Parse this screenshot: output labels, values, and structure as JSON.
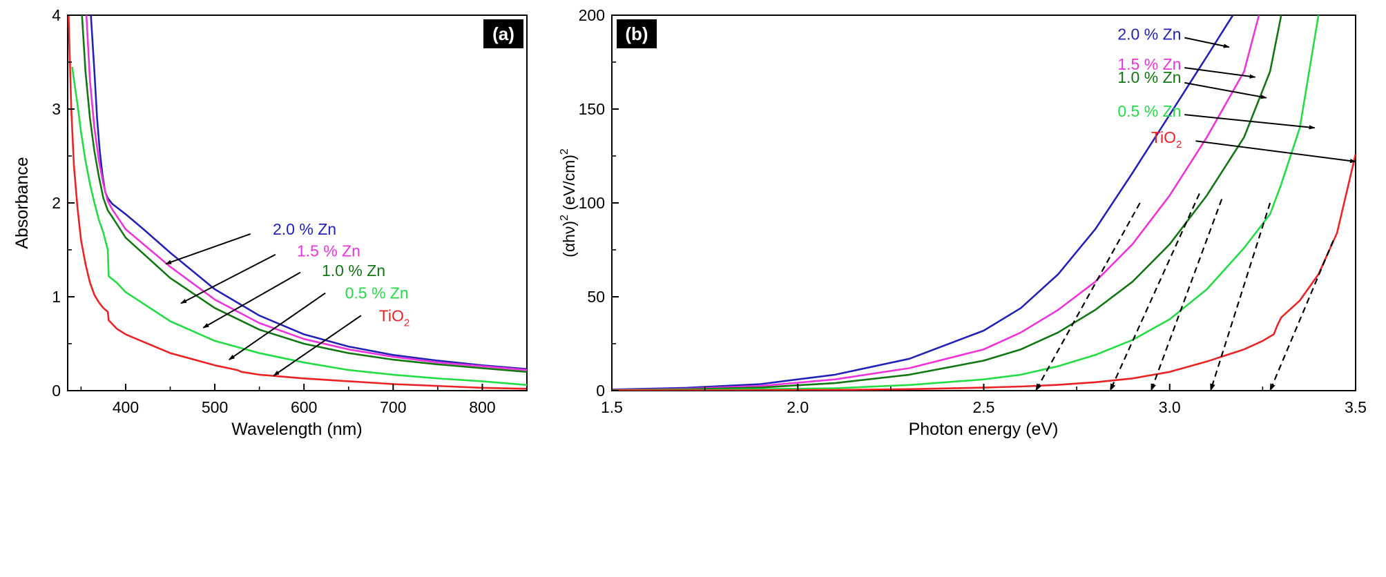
{
  "chart_data": [
    {
      "type": "line",
      "panel_label": "(a)",
      "xlabel": "Wavelength (nm)",
      "ylabel": "Absorbance",
      "xlim": [
        335,
        850
      ],
      "ylim": [
        0,
        4
      ],
      "xticks": [
        "400",
        "500",
        "600",
        "700",
        "800"
      ],
      "xtick_values": [
        400,
        500,
        600,
        700,
        800
      ],
      "yticks": [
        "0",
        "1",
        "2",
        "3",
        "4"
      ],
      "ytick_values": [
        0,
        1,
        2,
        3,
        4
      ],
      "grid": false,
      "series": [
        {
          "name": "2.0 % Zn",
          "color": "#2222bb",
          "points": [
            [
              361,
              4.0
            ],
            [
              365,
              3.4
            ],
            [
              368,
              2.9
            ],
            [
              371,
              2.55
            ],
            [
              374,
              2.3
            ],
            [
              377,
              2.12
            ],
            [
              380,
              2.05
            ],
            [
              385,
              1.99
            ],
            [
              400,
              1.88
            ],
            [
              420,
              1.72
            ],
            [
              450,
              1.47
            ],
            [
              500,
              1.08
            ],
            [
              550,
              0.8
            ],
            [
              600,
              0.6
            ],
            [
              650,
              0.47
            ],
            [
              700,
              0.38
            ],
            [
              750,
              0.32
            ],
            [
              800,
              0.27
            ],
            [
              850,
              0.23
            ]
          ]
        },
        {
          "name": "1.5 % Zn",
          "color": "#ee33dd",
          "points": [
            [
              356,
              4.0
            ],
            [
              360,
              3.3
            ],
            [
              365,
              2.8
            ],
            [
              370,
              2.45
            ],
            [
              375,
              2.2
            ],
            [
              380,
              2.02
            ],
            [
              385,
              1.93
            ],
            [
              400,
              1.72
            ],
            [
              450,
              1.32
            ],
            [
              500,
              0.97
            ],
            [
              550,
              0.72
            ],
            [
              600,
              0.55
            ],
            [
              650,
              0.44
            ],
            [
              700,
              0.36
            ],
            [
              750,
              0.3
            ],
            [
              800,
              0.26
            ],
            [
              850,
              0.22
            ]
          ]
        },
        {
          "name": "1.0 % Zn",
          "color": "#117711",
          "points": [
            [
              351,
              4.0
            ],
            [
              355,
              3.4
            ],
            [
              360,
              2.9
            ],
            [
              365,
              2.55
            ],
            [
              370,
              2.28
            ],
            [
              375,
              2.05
            ],
            [
              380,
              1.92
            ],
            [
              385,
              1.85
            ],
            [
              400,
              1.63
            ],
            [
              450,
              1.2
            ],
            [
              500,
              0.88
            ],
            [
              550,
              0.65
            ],
            [
              600,
              0.5
            ],
            [
              650,
              0.4
            ],
            [
              700,
              0.33
            ],
            [
              750,
              0.28
            ],
            [
              800,
              0.24
            ],
            [
              850,
              0.2
            ]
          ]
        },
        {
          "name": "0.5 % Zn",
          "color": "#22dd44",
          "points": [
            [
              340,
              3.45
            ],
            [
              343,
              3.25
            ],
            [
              346,
              3.05
            ],
            [
              350,
              2.75
            ],
            [
              355,
              2.45
            ],
            [
              360,
              2.2
            ],
            [
              365,
              2.0
            ],
            [
              370,
              1.82
            ],
            [
              375,
              1.68
            ],
            [
              380,
              1.5
            ],
            [
              381,
              1.22
            ],
            [
              390,
              1.15
            ],
            [
              400,
              1.05
            ],
            [
              450,
              0.74
            ],
            [
              500,
              0.53
            ],
            [
              550,
              0.4
            ],
            [
              600,
              0.3
            ],
            [
              650,
              0.22
            ],
            [
              700,
              0.17
            ],
            [
              750,
              0.13
            ],
            [
              800,
              0.1
            ],
            [
              850,
              0.06
            ]
          ]
        },
        {
          "name": "TiO2",
          "name_main": "TiO",
          "name_sub": "2",
          "color": "#ee2222",
          "points": [
            [
              336,
              4.0
            ],
            [
              339,
              3.0
            ],
            [
              342,
              2.4
            ],
            [
              346,
              1.95
            ],
            [
              350,
              1.6
            ],
            [
              355,
              1.35
            ],
            [
              360,
              1.15
            ],
            [
              365,
              1.02
            ],
            [
              370,
              0.94
            ],
            [
              375,
              0.88
            ],
            [
              380,
              0.84
            ],
            [
              381,
              0.75
            ],
            [
              390,
              0.66
            ],
            [
              400,
              0.6
            ],
            [
              450,
              0.4
            ],
            [
              500,
              0.27
            ],
            [
              525,
              0.22
            ],
            [
              530,
              0.2
            ],
            [
              550,
              0.17
            ],
            [
              600,
              0.13
            ],
            [
              650,
              0.1
            ],
            [
              700,
              0.07
            ],
            [
              750,
              0.05
            ],
            [
              800,
              0.03
            ],
            [
              850,
              0.02
            ]
          ]
        }
      ],
      "annotations": [
        {
          "series": "2.0 % Zn",
          "text": "2.0 % Zn",
          "color": "#2222bb",
          "tx": 565,
          "ty": 1.66,
          "ax": 540,
          "ay": 1.67,
          "hx": 445,
          "hy": 1.35
        },
        {
          "series": "1.5 % Zn",
          "text": "1.5 % Zn",
          "color": "#ee33dd",
          "tx": 592,
          "ty": 1.43,
          "ax": 568,
          "ay": 1.45,
          "hx": 462,
          "hy": 0.93
        },
        {
          "series": "1.0 % Zn",
          "text": "1.0 % Zn",
          "color": "#117711",
          "tx": 620,
          "ty": 1.22,
          "ax": 596,
          "ay": 1.26,
          "hx": 487,
          "hy": 0.67
        },
        {
          "series": "0.5 % Zn",
          "text": "0.5 % Zn",
          "color": "#22dd44",
          "tx": 646,
          "ty": 0.98,
          "ax": 624,
          "ay": 1.04,
          "hx": 516,
          "hy": 0.33
        },
        {
          "series": "TiO2",
          "text_main": "TiO",
          "text_sub": "2",
          "color": "#ee2222",
          "tx": 684,
          "ty": 0.74,
          "ax": 664,
          "ay": 0.8,
          "hx": 566,
          "hy": 0.16
        }
      ]
    },
    {
      "type": "line",
      "panel_label": "(b)",
      "xlabel": "Photon energy (eV)",
      "ylabel_parts": [
        "(αhν)",
        "2",
        " (eV/cm)",
        "2"
      ],
      "xlim": [
        1.5,
        3.5
      ],
      "ylim": [
        0,
        200
      ],
      "xticks": [
        "1.5",
        "2.0",
        "2.5",
        "3.0",
        "3.5"
      ],
      "xtick_values": [
        1.5,
        2.0,
        2.5,
        3.0,
        3.5
      ],
      "yticks": [
        "0",
        "50",
        "100",
        "150",
        "200"
      ],
      "ytick_values": [
        0,
        50,
        100,
        150,
        200
      ],
      "grid": false,
      "series": [
        {
          "name": "2.0 % Zn",
          "color": "#2222bb",
          "points": [
            [
              1.5,
              0.6
            ],
            [
              1.7,
              1.5
            ],
            [
              1.9,
              3.5
            ],
            [
              2.1,
              8.5
            ],
            [
              2.3,
              17
            ],
            [
              2.5,
              32
            ],
            [
              2.6,
              44
            ],
            [
              2.7,
              62
            ],
            [
              2.8,
              86
            ],
            [
              2.9,
              116
            ],
            [
              3.0,
              147
            ],
            [
              3.1,
              178
            ],
            [
              3.17,
              200
            ]
          ]
        },
        {
          "name": "1.5 % Zn",
          "color": "#ee33dd",
          "points": [
            [
              1.5,
              0.4
            ],
            [
              1.7,
              1.0
            ],
            [
              1.9,
              2.5
            ],
            [
              2.1,
              6
            ],
            [
              2.3,
              12
            ],
            [
              2.5,
              22
            ],
            [
              2.6,
              31
            ],
            [
              2.7,
              43
            ],
            [
              2.8,
              58
            ],
            [
              2.9,
              78
            ],
            [
              3.0,
              104
            ],
            [
              3.1,
              135
            ],
            [
              3.2,
              170
            ],
            [
              3.24,
              200
            ]
          ]
        },
        {
          "name": "1.0 % Zn",
          "color": "#117711",
          "points": [
            [
              1.5,
              0.3
            ],
            [
              1.7,
              0.7
            ],
            [
              1.9,
              1.7
            ],
            [
              2.1,
              4
            ],
            [
              2.3,
              8.5
            ],
            [
              2.5,
              16
            ],
            [
              2.6,
              22
            ],
            [
              2.7,
              31
            ],
            [
              2.8,
              43
            ],
            [
              2.9,
              58
            ],
            [
              3.0,
              78
            ],
            [
              3.1,
              104
            ],
            [
              3.2,
              135
            ],
            [
              3.27,
              170
            ],
            [
              3.3,
              200
            ]
          ]
        },
        {
          "name": "0.5 % Zn",
          "color": "#22dd44",
          "points": [
            [
              1.5,
              0.2
            ],
            [
              1.8,
              0.5
            ],
            [
              2.1,
              1.3
            ],
            [
              2.3,
              3
            ],
            [
              2.5,
              6
            ],
            [
              2.6,
              8.5
            ],
            [
              2.7,
              13
            ],
            [
              2.8,
              19
            ],
            [
              2.9,
              27
            ],
            [
              3.0,
              38
            ],
            [
              3.1,
              54
            ],
            [
              3.2,
              76
            ],
            [
              3.27,
              94
            ],
            [
              3.3,
              110
            ],
            [
              3.35,
              140
            ],
            [
              3.4,
              200
            ]
          ]
        },
        {
          "name": "TiO2",
          "name_main": "TiO",
          "name_sub": "2",
          "color": "#ee2222",
          "points": [
            [
              1.5,
              0.1
            ],
            [
              1.8,
              0.2
            ],
            [
              2.1,
              0.4
            ],
            [
              2.3,
              0.8
            ],
            [
              2.5,
              1.6
            ],
            [
              2.6,
              2.2
            ],
            [
              2.7,
              3.1
            ],
            [
              2.8,
              4.5
            ],
            [
              2.9,
              6.5
            ],
            [
              3.0,
              10
            ],
            [
              3.1,
              15.5
            ],
            [
              3.2,
              22
            ],
            [
              3.25,
              26.5
            ],
            [
              3.28,
              30
            ],
            [
              3.29,
              35
            ],
            [
              3.3,
              39
            ],
            [
              3.35,
              48
            ],
            [
              3.4,
              62
            ],
            [
              3.45,
              84
            ],
            [
              3.5,
              126
            ]
          ]
        }
      ],
      "tangent_lines": [
        {
          "x0": 2.64,
          "y0": 0,
          "x1": 2.92,
          "y1": 100
        },
        {
          "x0": 2.84,
          "y0": 0,
          "x1": 3.08,
          "y1": 105
        },
        {
          "x0": 2.95,
          "y0": 0,
          "x1": 3.14,
          "y1": 102
        },
        {
          "x0": 3.11,
          "y0": 0,
          "x1": 3.27,
          "y1": 100
        },
        {
          "x0": 3.27,
          "y0": 0,
          "x1": 3.44,
          "y1": 80
        }
      ],
      "annotations": [
        {
          "series": "2.0 % Zn",
          "text": "2.0 % Zn",
          "color": "#2222bb",
          "tx": 2.86,
          "ty": 187,
          "ax": 3.04,
          "ay": 188,
          "hx": 3.16,
          "hy": 183
        },
        {
          "series": "1.5 % Zn",
          "text": "1.5 % Zn",
          "color": "#ee33dd",
          "tx": 2.86,
          "ty": 171,
          "ax": 3.04,
          "ay": 172,
          "hx": 3.23,
          "hy": 167
        },
        {
          "series": "1.0 % Zn",
          "text": "1.0 % Zn",
          "color": "#117711",
          "tx": 2.86,
          "ty": 164,
          "ax": 3.04,
          "ay": 164,
          "hx": 3.26,
          "hy": 156
        },
        {
          "series": "0.5 % Zn",
          "text": "0.5 % Zn",
          "color": "#22dd44",
          "tx": 2.86,
          "ty": 146,
          "ax": 3.04,
          "ay": 147,
          "hx": 3.39,
          "hy": 140
        },
        {
          "series": "TiO2",
          "text_main": "TiO",
          "text_sub": "2",
          "color": "#ee2222",
          "tx": 2.95,
          "ty": 132,
          "ax": 3.07,
          "ay": 133,
          "hx": 3.5,
          "hy": 122
        }
      ]
    }
  ]
}
